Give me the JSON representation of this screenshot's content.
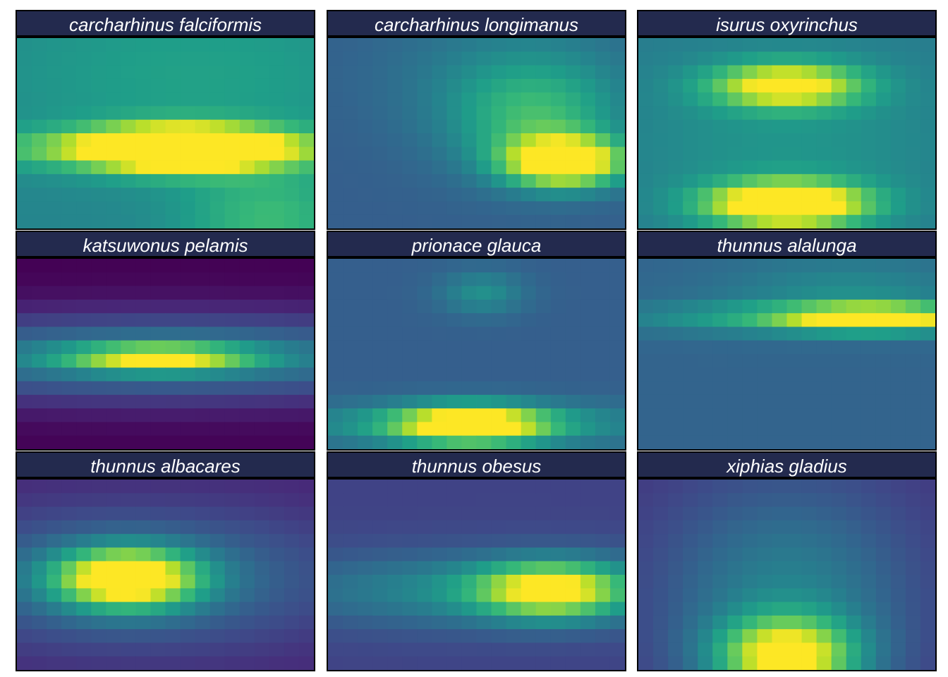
{
  "chart_data": {
    "type": "heatmap",
    "colormap": "viridis",
    "grid": false,
    "panels": [
      {
        "title": "carcharhinus falciformis",
        "components": [
          {
            "cx": 0.55,
            "cy": 0.58,
            "sx": 0.22,
            "sy": 0.08,
            "w": 1.0
          },
          {
            "cx": 0.5,
            "cy": 0.58,
            "sx": 0.6,
            "sy": 0.07,
            "w": 0.25
          },
          {
            "cx": 0.85,
            "cy": 0.95,
            "sx": 0.2,
            "sy": 0.2,
            "w": 0.22
          },
          {
            "cx": 0.6,
            "cy": 0.2,
            "sx": 0.5,
            "sy": 0.35,
            "w": 0.12
          }
        ],
        "base": 0.45
      },
      {
        "title": "carcharhinus longimanus",
        "components": [
          {
            "cx": 0.8,
            "cy": 0.65,
            "sx": 0.14,
            "sy": 0.09,
            "w": 0.85
          },
          {
            "cx": 0.7,
            "cy": 0.45,
            "sx": 0.2,
            "sy": 0.2,
            "w": 0.3
          },
          {
            "cx": 0.65,
            "cy": 0.2,
            "sx": 0.3,
            "sy": 0.25,
            "w": 0.15
          }
        ],
        "base": 0.3
      },
      {
        "title": "isurus oxyrinchus",
        "components": [
          {
            "cx": 0.5,
            "cy": 0.25,
            "sx": 0.17,
            "sy": 0.08,
            "w": 0.65
          },
          {
            "cx": 0.5,
            "cy": 0.87,
            "sx": 0.18,
            "sy": 0.08,
            "w": 0.9
          },
          {
            "cx": 0.5,
            "cy": 0.55,
            "sx": 0.4,
            "sy": 0.4,
            "w": 0.12
          }
        ],
        "base": 0.4
      },
      {
        "title": "katsuwonus pelamis",
        "components": [
          {
            "cx": 0.48,
            "cy": 0.52,
            "sx": 0.22,
            "sy": 0.05,
            "w": 0.65
          },
          {
            "cx": 0.48,
            "cy": 0.52,
            "sx": 0.9,
            "sy": 0.16,
            "w": 0.45
          }
        ],
        "base": 0.0
      },
      {
        "title": "prionace glauca",
        "components": [
          {
            "cx": 0.48,
            "cy": 0.87,
            "sx": 0.18,
            "sy": 0.07,
            "w": 0.8
          },
          {
            "cx": 0.48,
            "cy": 0.87,
            "sx": 0.6,
            "sy": 0.08,
            "w": 0.2
          },
          {
            "cx": 0.52,
            "cy": 0.18,
            "sx": 0.1,
            "sy": 0.08,
            "w": 0.2
          }
        ],
        "base": 0.3
      },
      {
        "title": "thunnus alalunga",
        "components": [
          {
            "cx": 0.8,
            "cy": 0.31,
            "sx": 0.2,
            "sy": 0.045,
            "w": 0.62
          },
          {
            "cx": 0.62,
            "cy": 0.31,
            "sx": 0.45,
            "sy": 0.06,
            "w": 0.3
          },
          {
            "cx": 0.7,
            "cy": 0.15,
            "sx": 0.3,
            "sy": 0.12,
            "w": 0.15
          }
        ],
        "base": 0.32
      },
      {
        "title": "thunnus albacares",
        "components": [
          {
            "cx": 0.37,
            "cy": 0.52,
            "sx": 0.17,
            "sy": 0.11,
            "w": 0.9
          },
          {
            "cx": 0.4,
            "cy": 0.52,
            "sx": 0.55,
            "sy": 0.28,
            "w": 0.3
          }
        ],
        "base": 0.08
      },
      {
        "title": "thunnus obesus",
        "components": [
          {
            "cx": 0.75,
            "cy": 0.58,
            "sx": 0.17,
            "sy": 0.1,
            "w": 0.65
          },
          {
            "cx": 0.6,
            "cy": 0.58,
            "sx": 0.55,
            "sy": 0.14,
            "w": 0.3
          }
        ],
        "base": 0.2
      },
      {
        "title": "xiphias gladius",
        "components": [
          {
            "cx": 0.5,
            "cy": 0.93,
            "sx": 0.16,
            "sy": 0.14,
            "w": 0.75
          },
          {
            "cx": 0.5,
            "cy": 0.65,
            "sx": 0.3,
            "sy": 0.45,
            "w": 0.3
          }
        ],
        "base": 0.15
      }
    ]
  }
}
